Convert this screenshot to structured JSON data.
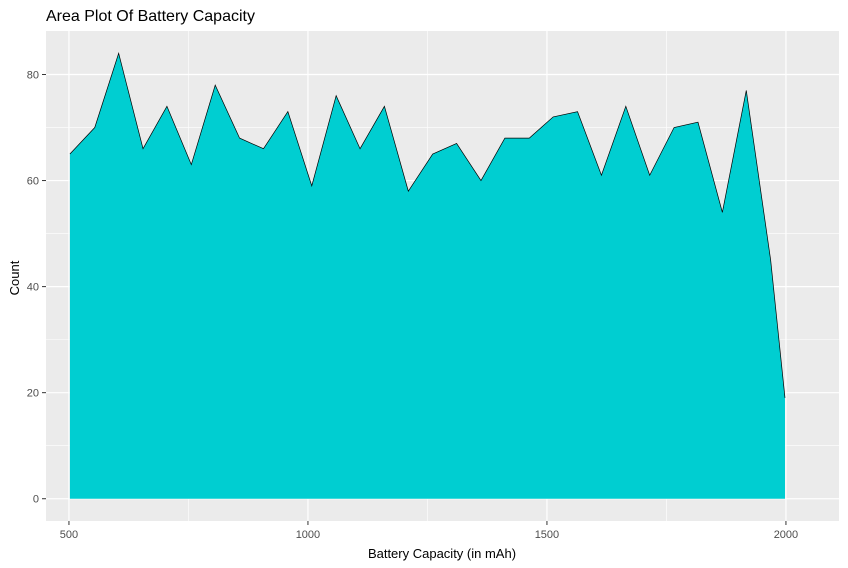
{
  "chart_data": {
    "type": "area",
    "title": "Area Plot Of Battery Capacity",
    "xlabel": "Battery Capacity (in mAh)",
    "ylabel": "Count",
    "xlim": [
      452,
      2111
    ],
    "ylim": [
      -4.2,
      88.2
    ],
    "x_ticks": [
      500,
      1000,
      1500,
      2000
    ],
    "x_tick_labels": [
      "500",
      "1000",
      "1500",
      "2000"
    ],
    "y_ticks": [
      0,
      20,
      40,
      60,
      80
    ],
    "y_tick_labels": [
      "0",
      "20",
      "40",
      "60",
      "80"
    ],
    "grid": true,
    "legend": "none",
    "fill_color": "#00CED1",
    "line_color": "#000000",
    "panel_color": "#EBEBEB",
    "grid_color": "#FFFFFF",
    "x": [
      502,
      554,
      604,
      655,
      705,
      756,
      806,
      857,
      907,
      958,
      1008,
      1059,
      1109,
      1160,
      1210,
      1261,
      1311,
      1362,
      1412,
      1463,
      1513,
      1564,
      1614,
      1665,
      1715,
      1766,
      1816,
      1867,
      1917,
      1968,
      1998
    ],
    "values": [
      65,
      70,
      84,
      66,
      74,
      63,
      78,
      68,
      66,
      73,
      59,
      76,
      66,
      74,
      58,
      65,
      67,
      60,
      68,
      68,
      72,
      73,
      61,
      74,
      61,
      70,
      71,
      54,
      77,
      45,
      19
    ]
  }
}
